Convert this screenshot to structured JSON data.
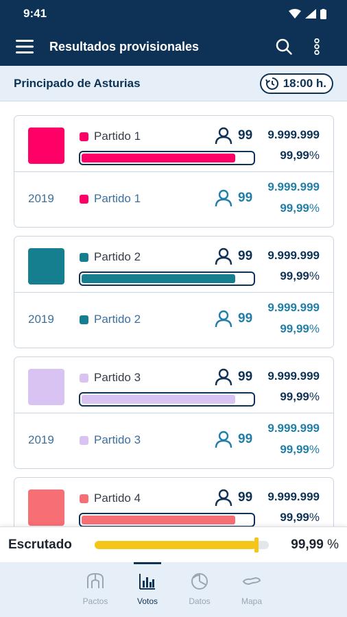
{
  "status": {
    "time": "9:41"
  },
  "appbar": {
    "title": "Resultados provisionales",
    "menu_icon": "menu-icon",
    "search_icon": "search-icon",
    "more_icon": "more-vert-icon"
  },
  "subheader": {
    "region": "Principado de Asturias",
    "time": "18:00 h.",
    "time_icon": "history-icon"
  },
  "colors": {
    "primary": "#0d3256",
    "accent": "#1f7fa8",
    "scrutiny": "#f5c518"
  },
  "parties": [
    {
      "name": "Partido 1",
      "color": "#ff0066",
      "seats": "99",
      "votes": "9.999.999",
      "pct": "99,99",
      "progress": 0.9,
      "prev": {
        "year": "2019",
        "name": "Partido 1",
        "seats": "99",
        "votes": "9.999.999",
        "pct": "99,99"
      }
    },
    {
      "name": "Partido 2",
      "color": "#157f8f",
      "seats": "99",
      "votes": "9.999.999",
      "pct": "99,99",
      "progress": 0.9,
      "prev": {
        "year": "2019",
        "name": "Partido 2",
        "seats": "99",
        "votes": "9.999.999",
        "pct": "99,99"
      }
    },
    {
      "name": "Partido 3",
      "color": "#d9c3f2",
      "seats": "99",
      "votes": "9.999.999",
      "pct": "99,99",
      "progress": 0.9,
      "prev": {
        "year": "2019",
        "name": "Partido 3",
        "seats": "99",
        "votes": "9.999.999",
        "pct": "99,99"
      }
    },
    {
      "name": "Partido 4",
      "color": "#f66f74",
      "seats": "99",
      "votes": "9.999.999",
      "pct": "99,99",
      "progress": 0.9
    }
  ],
  "pct_unit": "%",
  "scrutiny": {
    "label": "Escrutado",
    "value": "99,99",
    "unit": "%",
    "progress": 0.93
  },
  "nav": [
    {
      "label": "Pactos",
      "icon": "pacts-icon",
      "active": false
    },
    {
      "label": "Votos",
      "icon": "votes-chart-icon",
      "active": true
    },
    {
      "label": "Datos",
      "icon": "data-pie-icon",
      "active": false
    },
    {
      "label": "Mapa",
      "icon": "map-icon",
      "active": false
    }
  ]
}
